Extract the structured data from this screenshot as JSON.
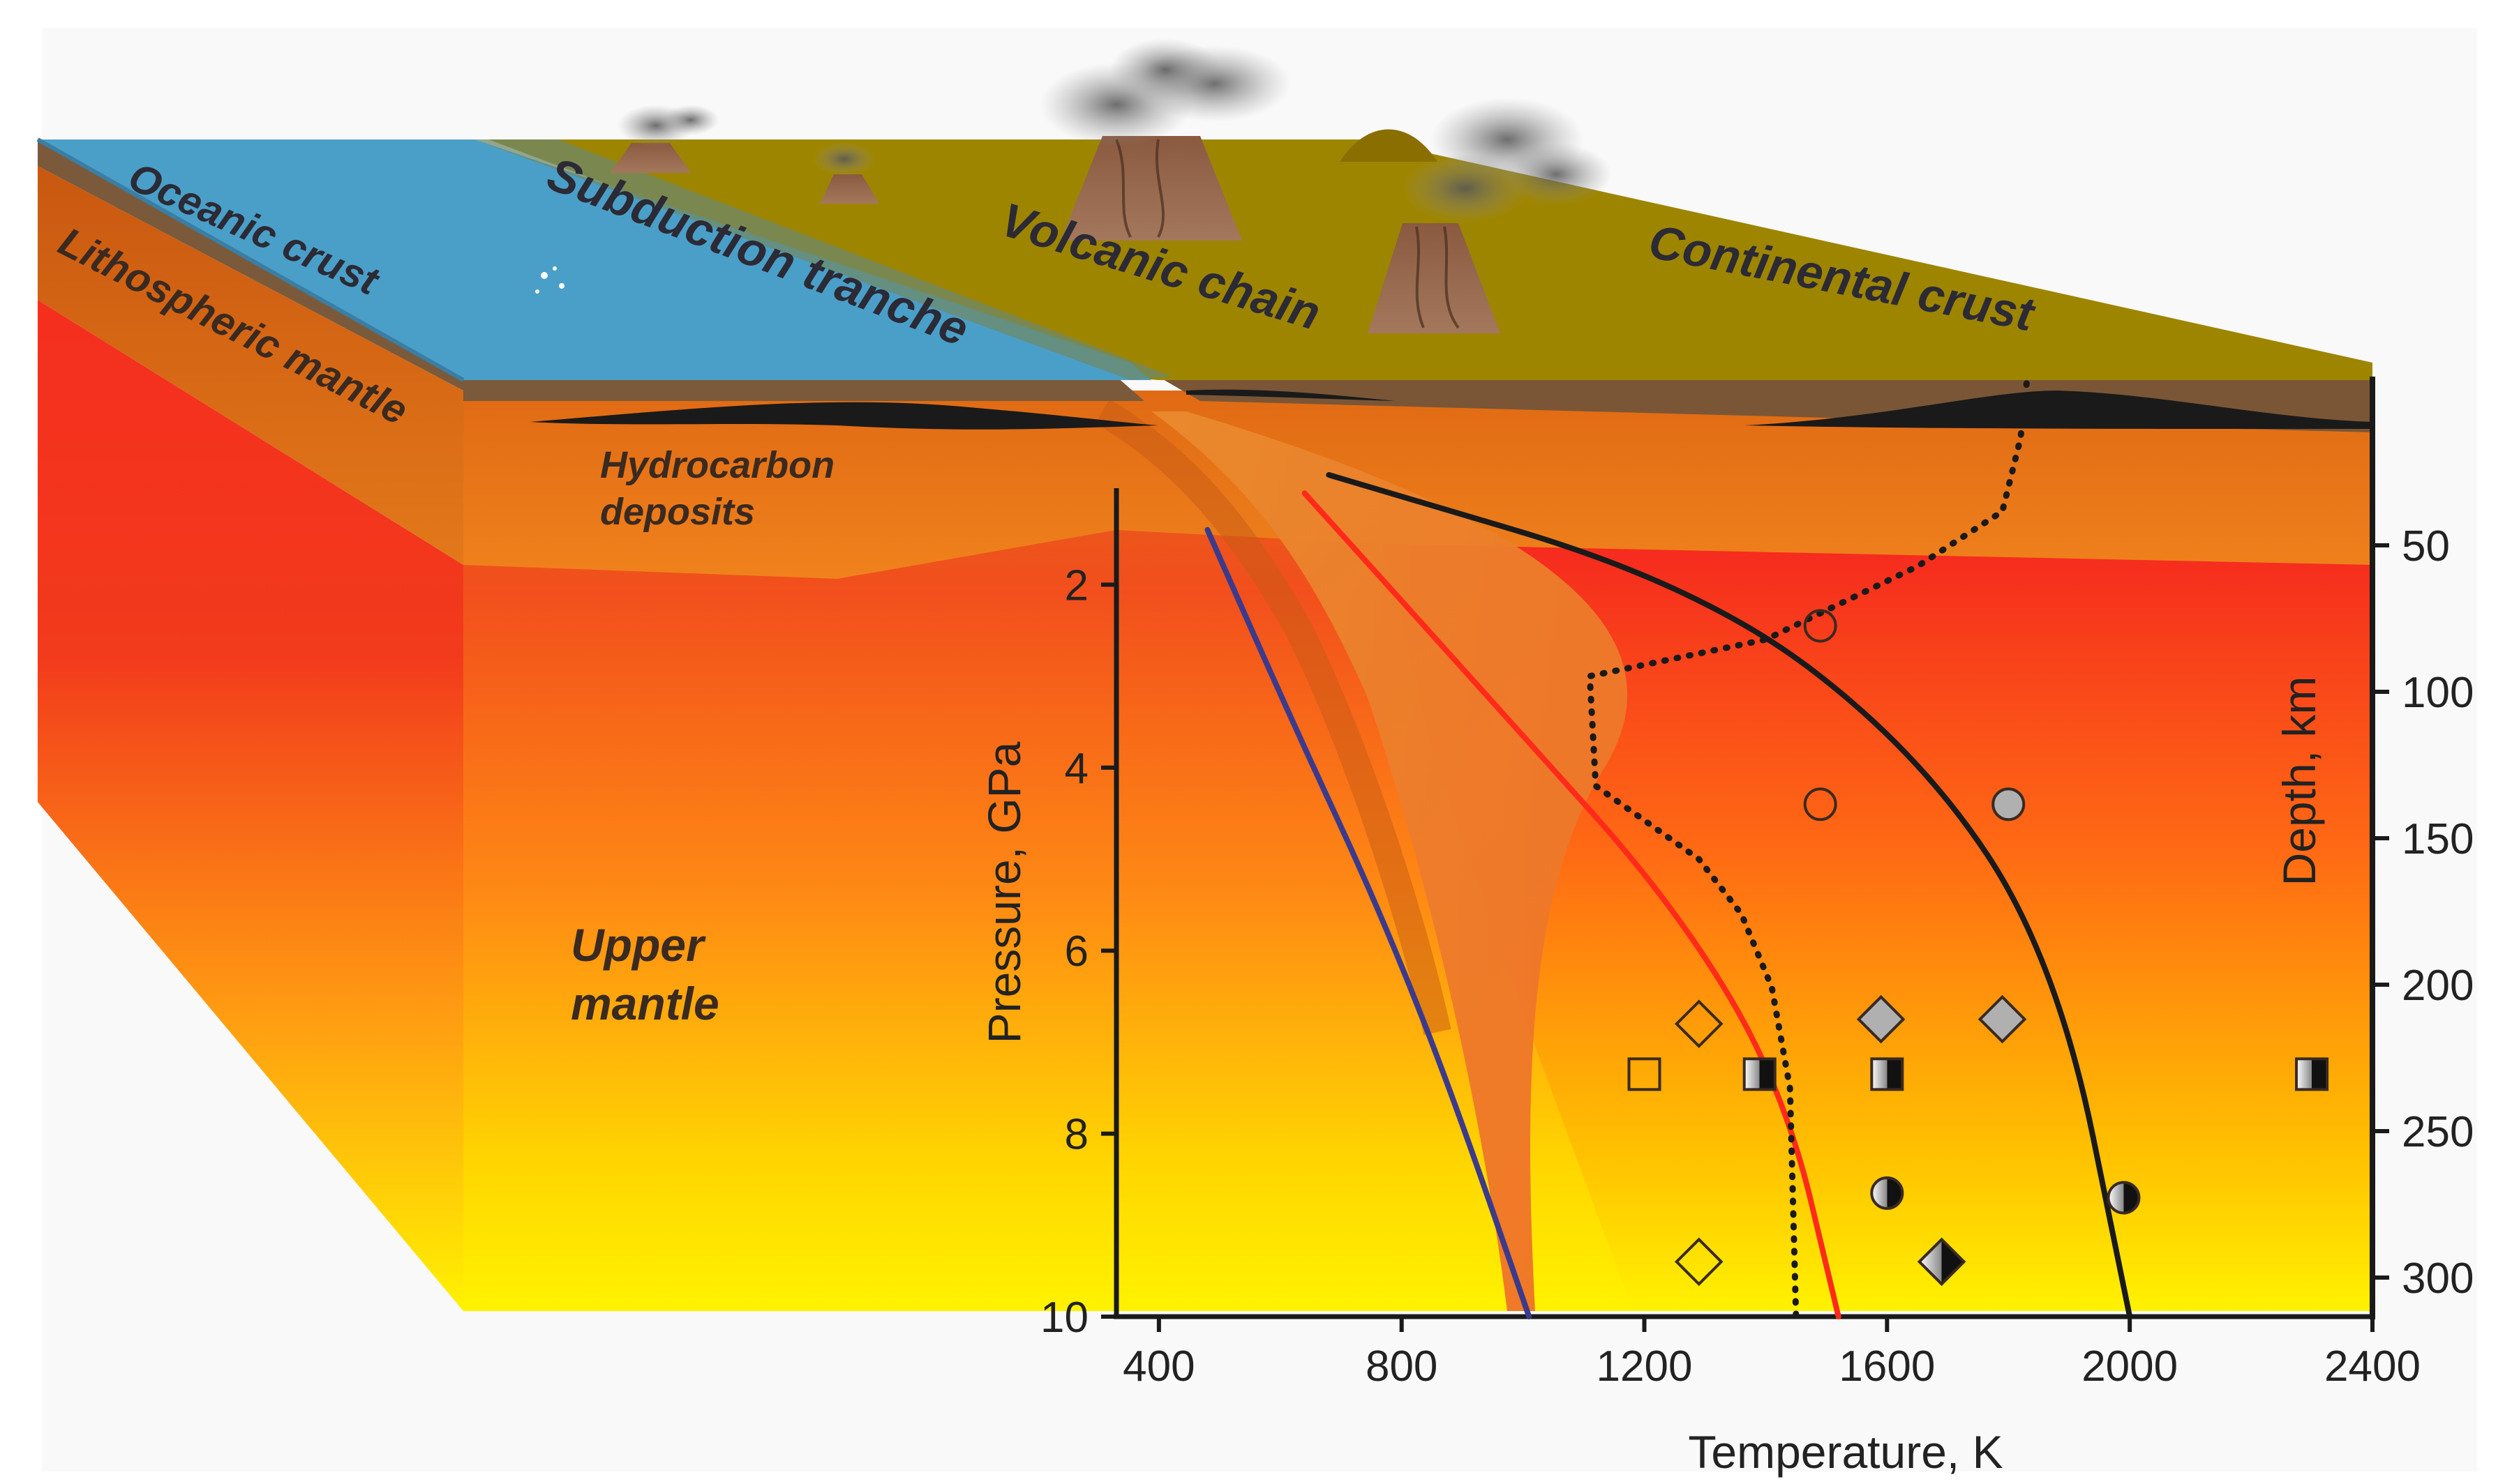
{
  "labels": {
    "oceanic_crust": "Oceanic crust",
    "lithospheric_mantle": "Lithospheric mantle",
    "subduction_tranche": "Subduction tranche",
    "volcanic_chain": "Volcanic chain",
    "continental_crust": "Continental crust",
    "hydrocarbon_line1": "Hydrocarbon",
    "hydrocarbon_line2": "deposits",
    "upper_mantle_line1": "Upper",
    "upper_mantle_line2": "mantle"
  },
  "colors": {
    "ocean": "#4a9fc8",
    "continent": "#9e8500",
    "brown_crust": "#7a5636",
    "mantle_top": "#e0621a",
    "mantle_mid": "#f52e1e",
    "mantle_bottom": "#fff200",
    "slab": "#e88a2a",
    "blue_curve": "#3b3a8c",
    "red_curve": "#ff2a1a",
    "black_curve": "#1a1a1a"
  },
  "chart_data": {
    "type": "scatter",
    "xlabel": "Temperature, K",
    "ylabel": "Pressure, GPa",
    "y2label": "Depth, km",
    "x_ticks": [
      "400",
      "800",
      "1200",
      "1600",
      "2000",
      "2400"
    ],
    "y_ticks": [
      "2",
      "4",
      "6",
      "8",
      "10"
    ],
    "depth_ticks": [
      "50",
      "100",
      "150",
      "200",
      "250",
      "300"
    ],
    "xlim": [
      330,
      2400
    ],
    "ylim": [
      10,
      0.8
    ],
    "curves": [
      {
        "style": "solid",
        "color": "#3b3a8c",
        "points": [
          [
            480,
            1.4
          ],
          [
            620,
            3.5
          ],
          [
            760,
            5.5
          ],
          [
            880,
            7.5
          ],
          [
            1010,
            10
          ]
        ]
      },
      {
        "style": "solid",
        "color": "#ff2a1a",
        "points": [
          [
            640,
            1.0
          ],
          [
            980,
            3.5
          ],
          [
            1250,
            5.5
          ],
          [
            1430,
            7.5
          ],
          [
            1520,
            10
          ]
        ]
      },
      {
        "style": "solid",
        "color": "#1a1a1a",
        "points": [
          [
            680,
            0.8
          ],
          [
            1290,
            2.0
          ],
          [
            1650,
            3.8
          ],
          [
            1880,
            6.1
          ],
          [
            2000,
            10
          ]
        ]
      },
      {
        "style": "dotted",
        "color": "#1a1a1a",
        "points": [
          [
            1830,
            -0.2
          ],
          [
            1820,
            0.4
          ],
          [
            1790,
            1.2
          ],
          [
            1650,
            1.8
          ],
          [
            1400,
            2.6
          ],
          [
            1110,
            3.0
          ],
          [
            1120,
            4.2
          ],
          [
            1290,
            5.0
          ],
          [
            1360,
            5.6
          ],
          [
            1410,
            6.4
          ],
          [
            1440,
            7.5
          ],
          [
            1450,
            10
          ]
        ]
      }
    ],
    "points": [
      {
        "x": 1490,
        "y": 2.45,
        "marker": "circle",
        "fill": "open"
      },
      {
        "x": 1490,
        "y": 4.4,
        "marker": "circle",
        "fill": "open"
      },
      {
        "x": 1800,
        "y": 4.4,
        "marker": "circle",
        "fill": "gray"
      },
      {
        "x": 1290,
        "y": 6.8,
        "marker": "diamond",
        "fill": "open"
      },
      {
        "x": 1590,
        "y": 6.75,
        "marker": "diamond",
        "fill": "gray"
      },
      {
        "x": 1790,
        "y": 6.75,
        "marker": "diamond",
        "fill": "gray"
      },
      {
        "x": 1200,
        "y": 7.35,
        "marker": "square",
        "fill": "open"
      },
      {
        "x": 1390,
        "y": 7.35,
        "marker": "square",
        "fill": "half"
      },
      {
        "x": 1600,
        "y": 7.35,
        "marker": "square",
        "fill": "half"
      },
      {
        "x": 2300,
        "y": 7.35,
        "marker": "square",
        "fill": "half"
      },
      {
        "x": 1600,
        "y": 8.65,
        "marker": "circle",
        "fill": "half"
      },
      {
        "x": 1990,
        "y": 8.7,
        "marker": "circle",
        "fill": "half"
      },
      {
        "x": 1290,
        "y": 9.4,
        "marker": "diamond",
        "fill": "open"
      },
      {
        "x": 1690,
        "y": 9.4,
        "marker": "diamond",
        "fill": "half"
      }
    ]
  }
}
